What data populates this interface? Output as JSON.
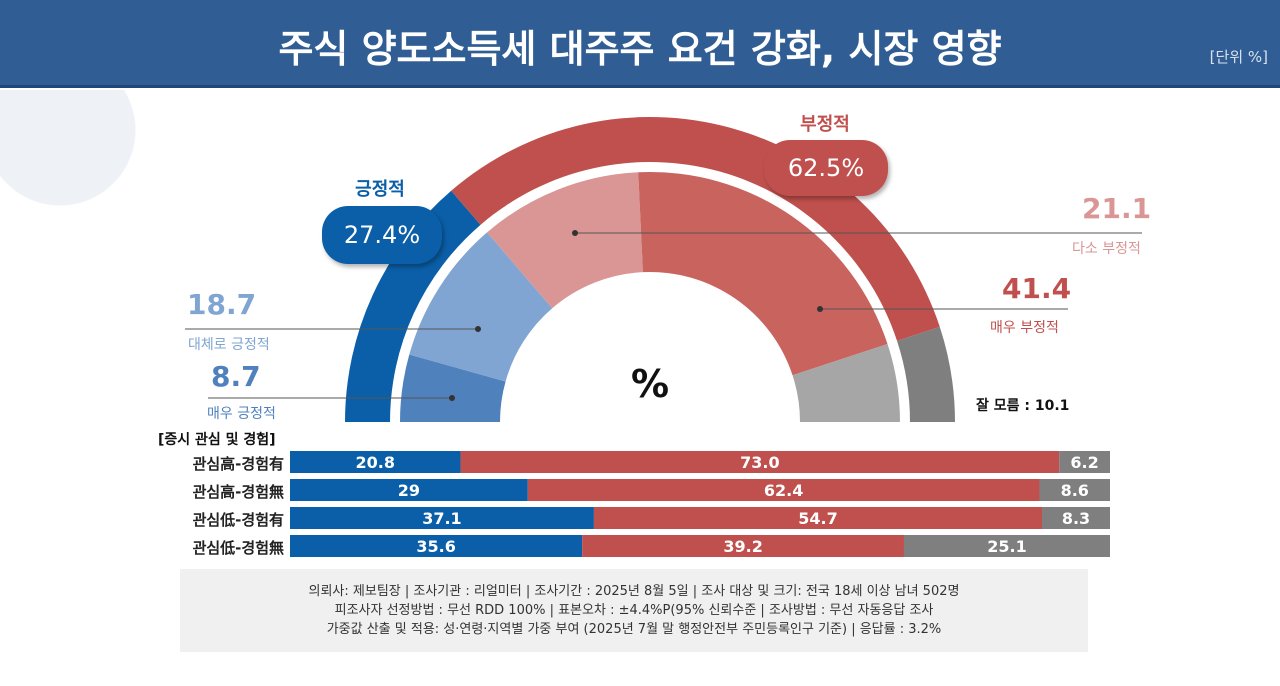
{
  "header": {
    "title": "주식 양도소득세 대주주 요건 강화, 시장 영향",
    "unit": "[단위 %]"
  },
  "colors": {
    "positive": "#0b5fa8",
    "negative": "#c0504d",
    "unknown": "#7f7f7f",
    "very_positive": "#4f81bd",
    "somewhat_positive": "#80a5d2",
    "somewhat_negative": "#d99694",
    "very_negative": "#c9635e",
    "unknown_inner": "#a6a6a6"
  },
  "chart_data": [
    {
      "type": "pie",
      "subtype": "semi-donut",
      "center_label": "%",
      "outer": [
        {
          "name": "긍정적",
          "value": 27.4,
          "label": "27.4%"
        },
        {
          "name": "부정적",
          "value": 62.5,
          "label": "62.5%"
        },
        {
          "name": "잘 모름",
          "value": 10.1
        }
      ],
      "inner": [
        {
          "name": "매우 긍정적",
          "value": 8.7,
          "label": "8.7"
        },
        {
          "name": "대체로 긍정적",
          "value": 18.7,
          "label": "18.7"
        },
        {
          "name": "다소 부정적",
          "value": 21.1,
          "label": "21.1"
        },
        {
          "name": "매우 부정적",
          "value": 41.4,
          "label": "41.4"
        },
        {
          "name": "잘 모름",
          "value": 10.1
        }
      ],
      "unknown_label": "잘 모름 : 10.1"
    },
    {
      "type": "bar",
      "stacked": true,
      "orientation": "horizontal",
      "title": "[증시 관심 및 경험]",
      "categories": [
        "관심高-경험有",
        "관심高-경험無",
        "관심低-경험有",
        "관심低-경험無"
      ],
      "series": [
        {
          "values": [
            20.8,
            29,
            37.1,
            35.6
          ],
          "labels": [
            "20.8",
            "29",
            "37.1",
            "35.6"
          ]
        },
        {
          "values": [
            73.0,
            62.4,
            54.7,
            39.2
          ],
          "labels": [
            "73.0",
            "62.4",
            "54.7",
            "39.2"
          ]
        },
        {
          "values": [
            6.2,
            8.6,
            8.3,
            25.1
          ],
          "labels": [
            "6.2",
            "8.6",
            "8.3",
            "25.1"
          ]
        }
      ]
    }
  ],
  "footer": {
    "line1": "의뢰사: 제보팀장 | 조사기관 : 리얼미터  |  조사기간 : 2025년 8월 5일 | 조사 대상 및 크기: 전국 18세 이상 남녀 502명",
    "line2": "피조사자 선정방법 : 무선 RDD 100% | 표본오차 : ±4.4%P(95% 신뢰수준 | 조사방법 : 무선 자동응답 조사",
    "line3": "가중값 산출 및 적용: 성·연령·지역별 가중 부여 (2025년 7월 말 행정안전부 주민등록인구 기준) | 응답률 : 3.2%"
  }
}
